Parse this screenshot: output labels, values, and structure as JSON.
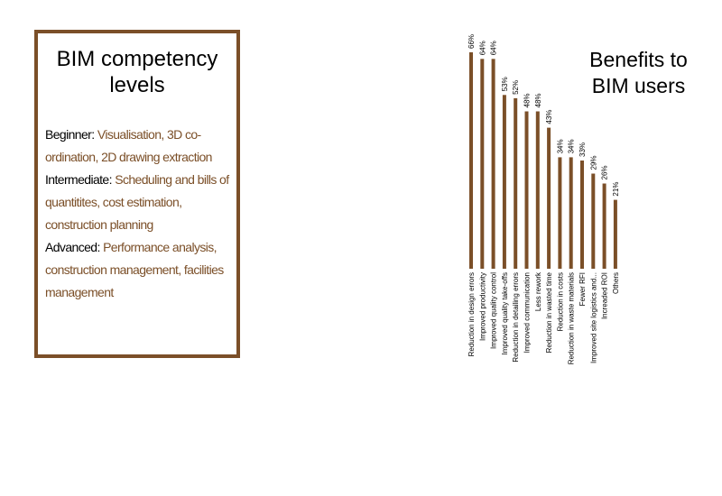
{
  "competency_card": {
    "title_lines": [
      "BIM competency",
      "levels"
    ],
    "levels": [
      {
        "name": "Beginner:",
        "desc": "Visualisation, 3D co-ordination, 2D drawing extraction"
      },
      {
        "name": "Intermediate:",
        "desc": "Scheduling and bills of quantitites, cost estimation, construction planning"
      },
      {
        "name": "Advanced:",
        "desc": "Performance analysis, construction management, facilities management"
      }
    ]
  },
  "colors": {
    "accent": "#7b4f28",
    "text": "#000000"
  },
  "chart_data": {
    "type": "bar",
    "title": "Benefits to BIM users",
    "title_lines": [
      "Benefits to",
      "BIM users"
    ],
    "categories": [
      "Reduction in design errors",
      "Improved productivity",
      "Improved quality control",
      "Improved quality take-offs",
      "Reduction in detailing errors",
      "Improved communication",
      "Less rework",
      "Reduction in wasted time",
      "Reduction in  costs",
      "Reduction in waste materials",
      "Fewer RFI",
      "Improved site logistics and...",
      "Increaded ROI",
      "Others"
    ],
    "values": [
      66,
      64,
      64,
      53,
      52,
      48,
      48,
      43,
      34,
      34,
      33,
      29,
      26,
      21
    ],
    "value_labels": [
      "66%",
      "64%",
      "64%",
      "53%",
      "52%",
      "48%",
      "48%",
      "43%",
      "34%",
      "34%",
      "33%",
      "29%",
      "26%",
      "21%"
    ],
    "ylim": [
      0,
      66
    ],
    "grid": false,
    "legend": "none"
  }
}
